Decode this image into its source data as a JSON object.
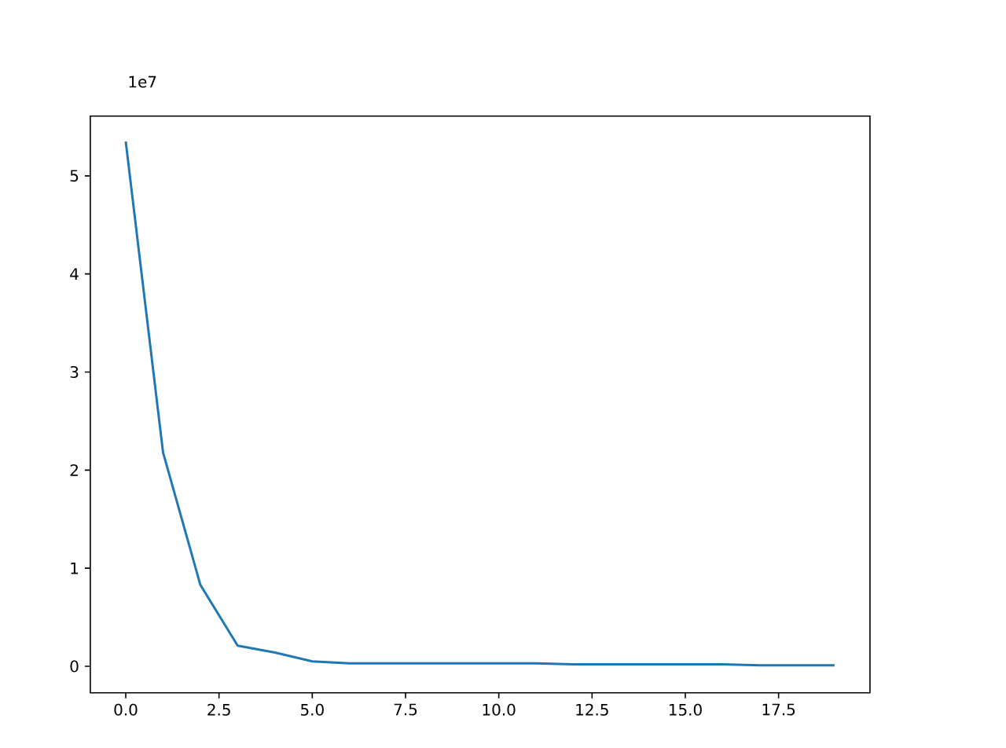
{
  "chart_data": {
    "type": "line",
    "x": [
      0,
      1,
      2,
      3,
      4,
      5,
      6,
      7,
      8,
      9,
      10,
      11,
      12,
      13,
      14,
      15,
      16,
      17,
      18,
      19
    ],
    "series": [
      {
        "color": "#1f77b4",
        "values": [
          5.35,
          2.18,
          0.83,
          0.21,
          0.14,
          0.05,
          0.03,
          0.03,
          0.03,
          0.03,
          0.03,
          0.03,
          0.02,
          0.02,
          0.02,
          0.02,
          0.02,
          0.01,
          0.01,
          0.01
        ]
      }
    ],
    "xlim": [
      -0.95,
      19.95
    ],
    "xticks": [
      {
        "value": 0,
        "label": "0.0"
      },
      {
        "value": 2.5,
        "label": "2.5"
      },
      {
        "value": 5,
        "label": "5.0"
      },
      {
        "value": 7.5,
        "label": "7.5"
      },
      {
        "value": 10,
        "label": "10.0"
      },
      {
        "value": 12.5,
        "label": "12.5"
      },
      {
        "value": 15,
        "label": "15.0"
      },
      {
        "value": 17.5,
        "label": "17.5"
      }
    ],
    "ylim": [
      -0.27,
      5.61
    ],
    "yticks": [
      0,
      1,
      2,
      3,
      4,
      5
    ],
    "annotations": [
      "1e7"
    ],
    "grid": false,
    "marker": "none",
    "line_style": "solid"
  }
}
